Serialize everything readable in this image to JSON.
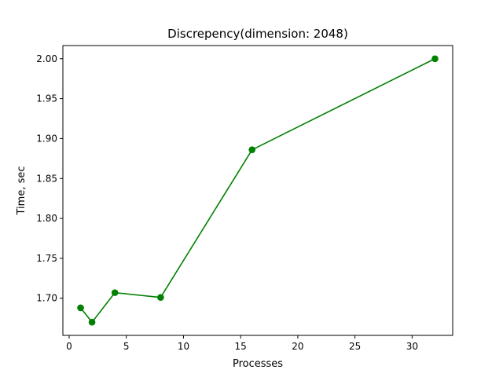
{
  "chart_data": {
    "type": "line",
    "title": "Discrepency(dimension: 2048)",
    "xlabel": "Processes",
    "ylabel": "Time, sec",
    "xlim": [
      -0.55,
      33.55
    ],
    "ylim": [
      1.6535,
      2.0165
    ],
    "xticks": [
      0,
      5,
      10,
      15,
      20,
      25,
      30
    ],
    "xtick_labels": [
      "0",
      "5",
      "10",
      "15",
      "20",
      "25",
      "30"
    ],
    "yticks": [
      1.7,
      1.75,
      1.8,
      1.85,
      1.9,
      1.95,
      2.0
    ],
    "ytick_labels": [
      "1.70",
      "1.75",
      "1.80",
      "1.85",
      "1.90",
      "1.95",
      "2.00"
    ],
    "grid": false,
    "legend": "none",
    "series": [
      {
        "color": "#008000",
        "marker": "circle",
        "x": [
          1,
          2,
          4,
          8,
          16,
          32
        ],
        "y": [
          1.688,
          1.67,
          1.707,
          1.701,
          1.886,
          2.0
        ]
      }
    ]
  }
}
